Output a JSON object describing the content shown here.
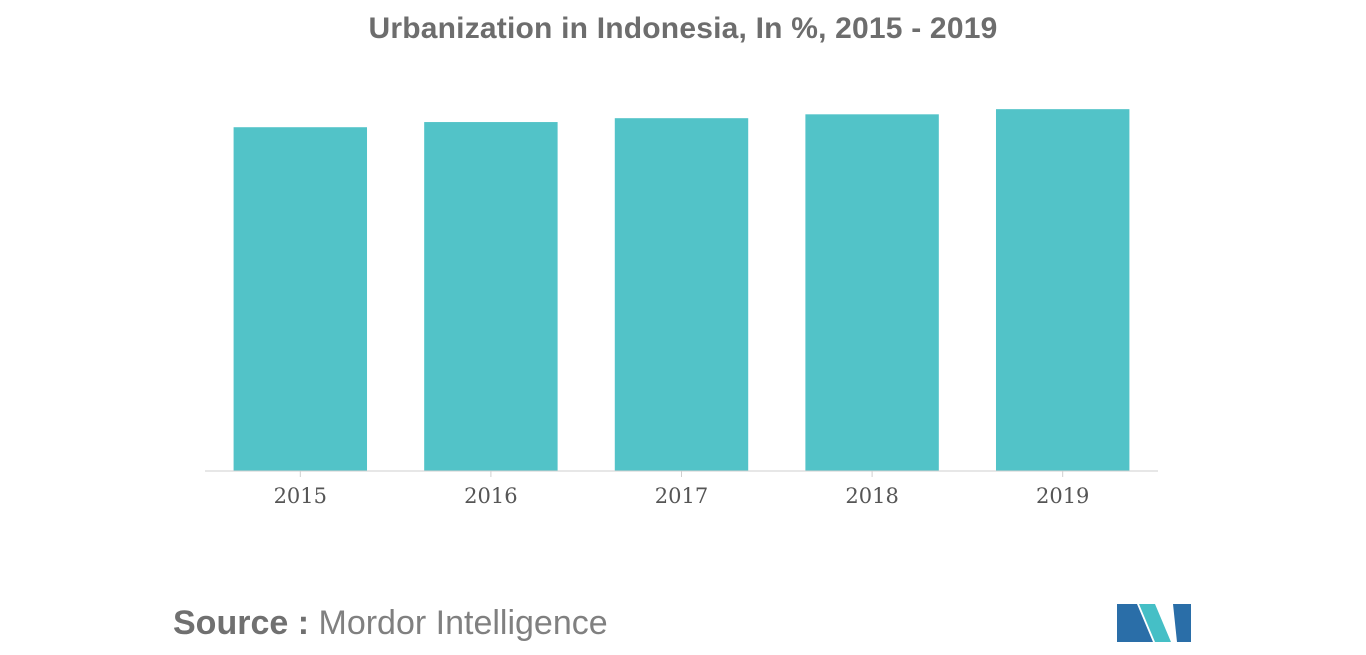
{
  "chart_data": {
    "type": "bar",
    "title": "Urbanization in Indonesia, In %, 2015 - 2019",
    "categories": [
      "2015",
      "2016",
      "2017",
      "2018",
      "2019"
    ],
    "values": [
      53.3,
      54.1,
      54.7,
      55.3,
      56.1
    ],
    "xlabel": "",
    "ylabel": "",
    "ylim": [
      0,
      60
    ],
    "grid": false,
    "legend": "none",
    "bar_color": "#52c3c8",
    "axis_color": "#cfcfcf"
  },
  "source": {
    "label": "Source :",
    "text": "Mordor Intelligence"
  },
  "logo": {
    "colors": [
      "#2a6ea8",
      "#45bfc6"
    ]
  }
}
